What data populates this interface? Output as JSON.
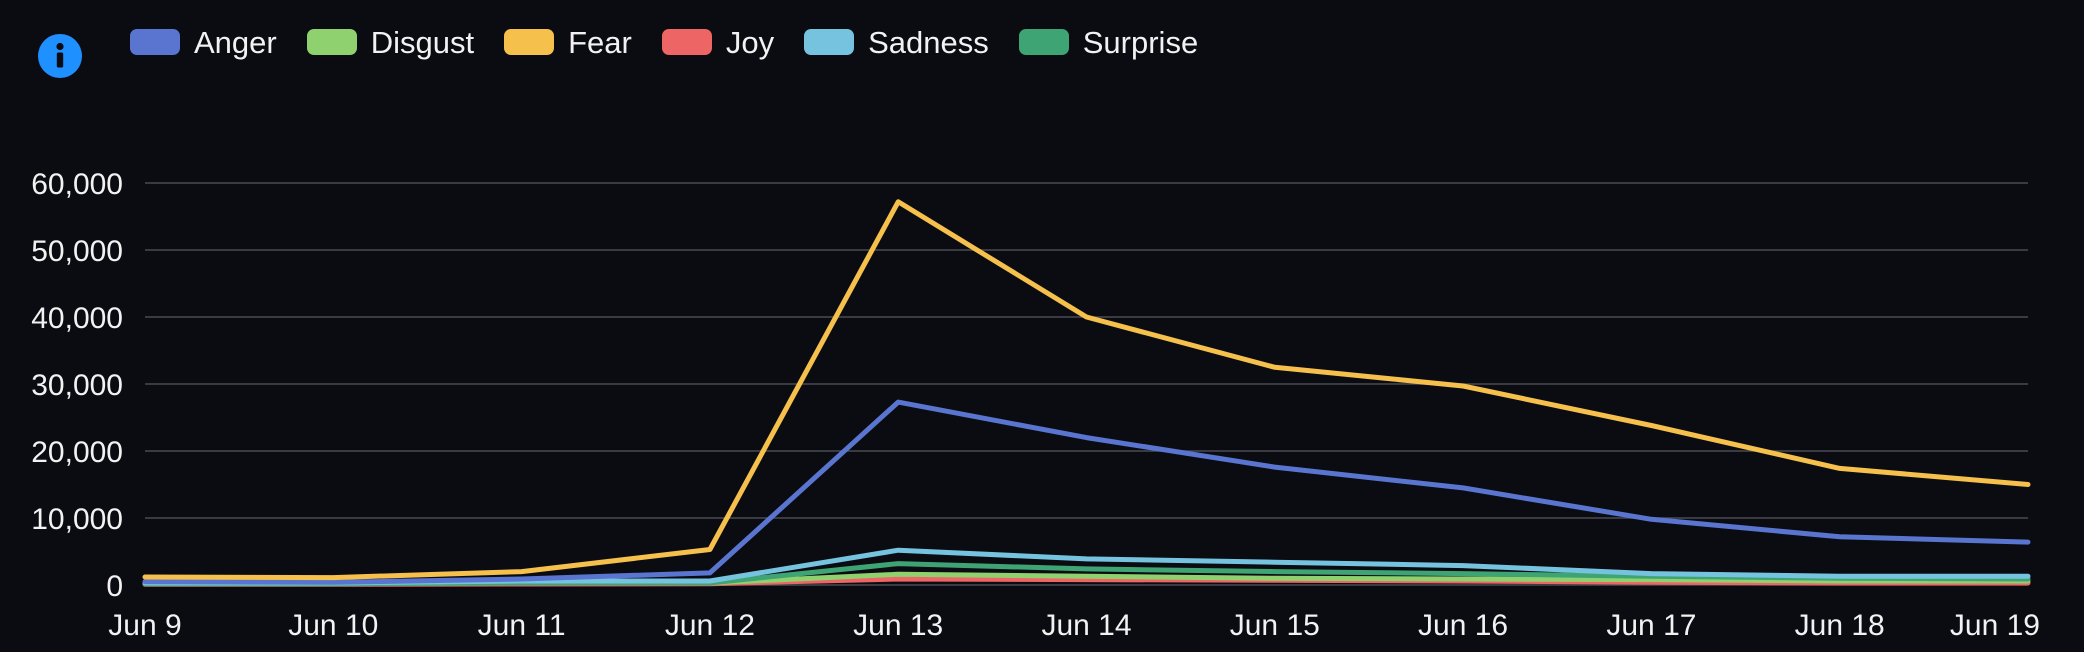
{
  "info_button": {
    "icon": "info-icon",
    "color": "#1e90ff"
  },
  "chart_data": {
    "type": "line",
    "title": "",
    "xlabel": "",
    "ylabel": "",
    "categories": [
      "Jun 9",
      "Jun 10",
      "Jun 11",
      "Jun 12",
      "Jun 13",
      "Jun 14",
      "Jun 15",
      "Jun 16",
      "Jun 17",
      "Jun 18",
      "Jun 19"
    ],
    "y_ticks": [
      "0",
      "10,000",
      "20,000",
      "30,000",
      "40,000",
      "50,000",
      "60,000"
    ],
    "ylim": [
      0,
      60000
    ],
    "grid": true,
    "legend_position": "top-left",
    "series": [
      {
        "name": "Anger",
        "color": "#5a75cf",
        "values": [
          500,
          400,
          900,
          1800,
          27300,
          22000,
          17600,
          14500,
          9800,
          7200,
          6400
        ]
      },
      {
        "name": "Disgust",
        "color": "#8fd16e",
        "values": [
          200,
          200,
          300,
          300,
          1600,
          1300,
          1000,
          900,
          800,
          600,
          600
        ]
      },
      {
        "name": "Fear",
        "color": "#f5c04b",
        "values": [
          1200,
          1100,
          2000,
          5300,
          57200,
          40000,
          32500,
          29700,
          23800,
          17400,
          15000
        ]
      },
      {
        "name": "Joy",
        "color": "#ee6565",
        "values": [
          100,
          100,
          150,
          200,
          900,
          800,
          700,
          600,
          400,
          300,
          300
        ]
      },
      {
        "name": "Sadness",
        "color": "#76c3e0",
        "values": [
          300,
          300,
          600,
          600,
          5200,
          3900,
          3400,
          2900,
          1700,
          1300,
          1300
        ]
      },
      {
        "name": "Surprise",
        "color": "#3fa473",
        "values": [
          200,
          200,
          300,
          300,
          3200,
          2400,
          2000,
          1700,
          1300,
          1000,
          900
        ]
      }
    ]
  }
}
